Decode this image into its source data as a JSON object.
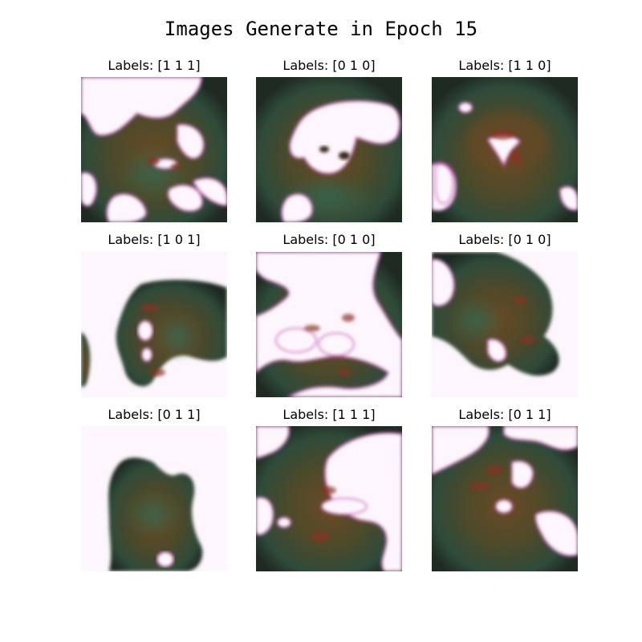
{
  "figure": {
    "title": "Images Generate in Epoch 15"
  },
  "grid": {
    "cells": [
      {
        "label": "Labels: [1 1 1]"
      },
      {
        "label": "Labels: [0 1 0]"
      },
      {
        "label": "Labels: [1 1 0]"
      },
      {
        "label": "Labels: [1 0 1]"
      },
      {
        "label": "Labels: [0 1 0]"
      },
      {
        "label": "Labels: [0 1 0]"
      },
      {
        "label": "Labels: [0 1 1]"
      },
      {
        "label": "Labels: [1 1 1]"
      },
      {
        "label": "Labels: [0 1 1]"
      }
    ]
  },
  "colors": {
    "background": "#ffffff",
    "blob_dark": "#3a3a22",
    "blob_mid": "#5c4a2a",
    "blob_green": "#2f5a45",
    "blob_red": "#8a3320",
    "white_region": "#fdf7fd",
    "edge_magenta": "#d24fbf"
  }
}
